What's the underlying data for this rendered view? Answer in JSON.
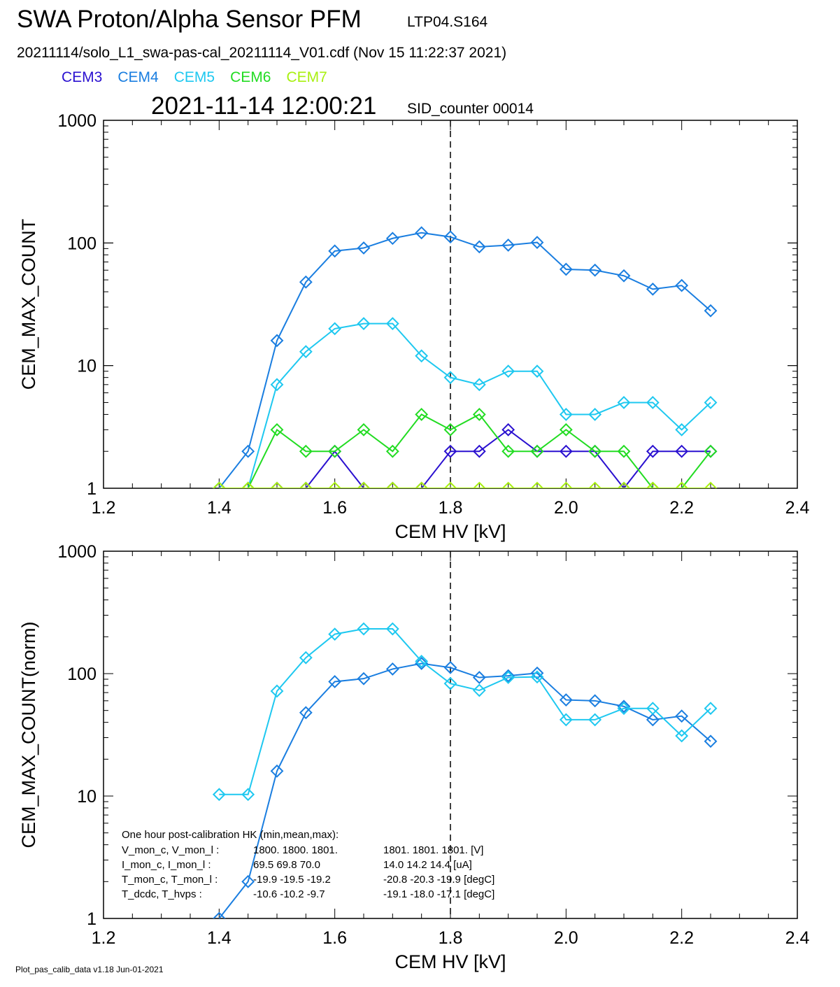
{
  "header": {
    "title": "SWA Proton/Alpha Sensor PFM",
    "run_id": "LTP04.S164",
    "file_line": "20211114/solo_L1_swa-pas-cal_20211114_V01.cdf  (Nov 15 11:22:37 2021)",
    "timestamp": "2021-11-14 12:00:21",
    "sid_counter": "SID_counter 00014"
  },
  "legend": [
    {
      "name": "CEM3",
      "color": "#2a10d0"
    },
    {
      "name": "CEM4",
      "color": "#1a7ee0"
    },
    {
      "name": "CEM5",
      "color": "#1ec8f0"
    },
    {
      "name": "CEM6",
      "color": "#22dc22"
    },
    {
      "name": "CEM7",
      "color": "#a8f010"
    }
  ],
  "footer": "Plot_pas_calib_data v1.18 Jun-01-2021",
  "chart_data": [
    {
      "type": "line",
      "xlabel": "CEM HV [kV]",
      "ylabel": "CEM_MAX_COUNT",
      "xlim": [
        1.2,
        2.4
      ],
      "ylim": [
        1,
        1000
      ],
      "yscale": "log",
      "xticks": [
        "1.2",
        "1.4",
        "1.6",
        "1.8",
        "2.0",
        "2.2",
        "2.4"
      ],
      "yticks": [
        "1",
        "10",
        "100",
        "1000"
      ],
      "vline_x": 1.8,
      "x": [
        1.4,
        1.45,
        1.5,
        1.55,
        1.6,
        1.65,
        1.7,
        1.75,
        1.8,
        1.85,
        1.9,
        1.95,
        2.0,
        2.05,
        2.1,
        2.15,
        2.2,
        2.25
      ],
      "series": [
        {
          "name": "CEM3",
          "color": "#2a10d0",
          "values": [
            1,
            1,
            1,
            1,
            2,
            1,
            1,
            1,
            2,
            2,
            3,
            2,
            2,
            2,
            1,
            2,
            2,
            2
          ]
        },
        {
          "name": "CEM4",
          "color": "#1a7ee0",
          "values": [
            1,
            2,
            16,
            48,
            86,
            91,
            109,
            121,
            112,
            93,
            96,
            101,
            61,
            60,
            54,
            42,
            45,
            28
          ]
        },
        {
          "name": "CEM5",
          "color": "#1ec8f0",
          "values": [
            1,
            1,
            7,
            13,
            20,
            22,
            22,
            12,
            8,
            7,
            9,
            9,
            4,
            4,
            5,
            5,
            3,
            5
          ]
        },
        {
          "name": "CEM6",
          "color": "#22dc22",
          "values": [
            1,
            1,
            3,
            2,
            2,
            3,
            2,
            4,
            3,
            4,
            2,
            2,
            3,
            2,
            2,
            1,
            1,
            2
          ]
        },
        {
          "name": "CEM7",
          "color": "#a8f010",
          "values": [
            1,
            1,
            1,
            1,
            1,
            1,
            1,
            1,
            1,
            1,
            1,
            1,
            1,
            1,
            1,
            1,
            1,
            1
          ]
        }
      ]
    },
    {
      "type": "line",
      "xlabel": "CEM HV [kV]",
      "ylabel": "CEM_MAX_COUNT(norm)",
      "xlim": [
        1.2,
        2.4
      ],
      "ylim": [
        1,
        1000
      ],
      "yscale": "log",
      "xticks": [
        "1.2",
        "1.4",
        "1.6",
        "1.8",
        "2.0",
        "2.2",
        "2.4"
      ],
      "yticks": [
        "1",
        "10",
        "100",
        "1000"
      ],
      "vline_x": 1.8,
      "x": [
        1.4,
        1.45,
        1.5,
        1.55,
        1.6,
        1.65,
        1.7,
        1.75,
        1.8,
        1.85,
        1.9,
        1.95,
        2.0,
        2.05,
        2.1,
        2.15,
        2.2,
        2.25
      ],
      "series": [
        {
          "name": "CEM4",
          "color": "#1a7ee0",
          "values": [
            1,
            2,
            16,
            48,
            86,
            91,
            109,
            121,
            112,
            93,
            96,
            101,
            61,
            60,
            54,
            42,
            45,
            28
          ]
        },
        {
          "name": "CEM5",
          "color": "#1ec8f0",
          "values": [
            10.3,
            10.3,
            72,
            135,
            210,
            232,
            232,
            126,
            83,
            73,
            93,
            94,
            42,
            42,
            52,
            52,
            31,
            52
          ]
        }
      ],
      "annotation": {
        "heading": "One hour post-calibration HK (min,mean,max):",
        "rows": [
          {
            "label": "V_mon_c, V_mon_l :",
            "c": "1800.  1800.  1801.",
            "l": "1801.  1801.  1801. [V]"
          },
          {
            "label": "I_mon_c,  I_mon_l :",
            "c": "69.5   69.8   70.0",
            "l": "14.0   14.2  14.4  [uA]"
          },
          {
            "label": "T_mon_c, T_mon_l :",
            "c": "-19.9  -19.5  -19.2",
            "l": "-20.8  -20.3  -19.9  [degC]"
          },
          {
            "label": "T_dcdc,    T_hvps :",
            "c": "-10.6  -10.2   -9.7",
            "l": "-19.1  -18.0  -17.1  [degC]"
          }
        ]
      }
    }
  ]
}
